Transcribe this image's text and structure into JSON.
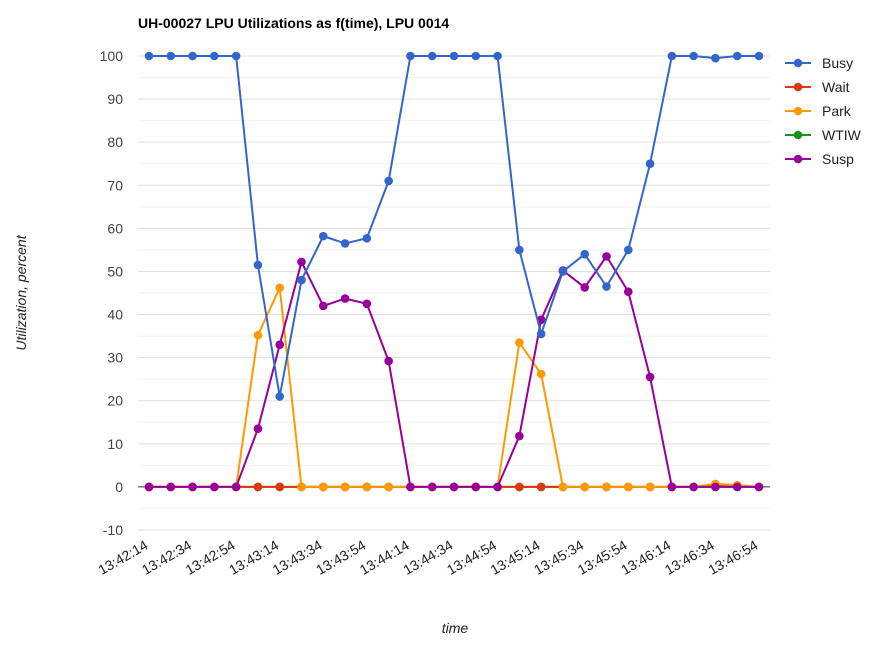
{
  "chart_data": {
    "type": "line",
    "title": "UH-00027 LPU Utilizations as f(time), LPU 0014",
    "xlabel": "time",
    "ylabel": "Utilization, percent",
    "ylim": [
      -10,
      100
    ],
    "yticks": [
      -10,
      0,
      10,
      20,
      30,
      40,
      50,
      60,
      70,
      80,
      90,
      100
    ],
    "x": [
      "13:42:14",
      "13:42:24",
      "13:42:34",
      "13:42:44",
      "13:42:54",
      "13:43:04",
      "13:43:14",
      "13:43:24",
      "13:43:34",
      "13:43:44",
      "13:43:54",
      "13:44:04",
      "13:44:14",
      "13:44:24",
      "13:44:34",
      "13:44:44",
      "13:44:54",
      "13:45:04",
      "13:45:14",
      "13:45:24",
      "13:45:34",
      "13:45:44",
      "13:45:54",
      "13:46:04",
      "13:46:14",
      "13:46:24",
      "13:46:34",
      "13:46:44",
      "13:46:54"
    ],
    "xtick_labels": [
      "13:42:14",
      "13:42:34",
      "13:42:54",
      "13:43:14",
      "13:43:34",
      "13:43:54",
      "13:44:14",
      "13:44:34",
      "13:44:54",
      "13:45:14",
      "13:45:34",
      "13:45:54",
      "13:46:14",
      "13:46:34",
      "13:46:54"
    ],
    "grid": true,
    "legend_position": "right",
    "series": [
      {
        "name": "Busy",
        "color": "#3366cc",
        "values": [
          100,
          100,
          100,
          100,
          100,
          51.5,
          21,
          48,
          58.2,
          56.5,
          57.7,
          71,
          100,
          100,
          100,
          100,
          100,
          55,
          35.5,
          50,
          54,
          46.5,
          55,
          75,
          100,
          100,
          99.5,
          100,
          100
        ]
      },
      {
        "name": "Wait",
        "color": "#dc3912",
        "values": [
          0,
          0,
          0,
          0,
          0,
          0,
          0,
          0,
          0,
          0,
          0,
          0,
          0,
          0,
          0,
          0,
          0,
          0,
          0,
          0,
          0,
          0,
          0,
          0,
          0,
          0,
          0.5,
          0.3,
          0
        ]
      },
      {
        "name": "Park",
        "color": "#ff9900",
        "values": [
          0,
          0,
          0,
          0,
          0,
          35.2,
          46.2,
          0,
          0,
          0,
          0,
          0,
          0,
          0,
          0,
          0,
          0,
          33.5,
          26.2,
          0,
          0,
          0,
          0,
          0,
          0,
          0,
          0.7,
          0.4,
          0
        ]
      },
      {
        "name": "WTIW",
        "color": "#109618",
        "values": [
          0,
          0,
          0,
          0,
          0,
          0,
          0,
          0,
          0,
          0,
          0,
          0,
          0,
          0,
          0,
          0,
          0,
          0,
          0,
          0,
          0,
          0,
          0,
          0,
          0,
          0,
          0,
          0,
          0
        ]
      },
      {
        "name": "Susp",
        "color": "#990099",
        "values": [
          0,
          0,
          0,
          0,
          0,
          13.5,
          33,
          52.2,
          42,
          43.7,
          42.5,
          29.2,
          0,
          0,
          0,
          0,
          0,
          11.8,
          38.8,
          50.2,
          46.3,
          53.5,
          45.3,
          25.5,
          0,
          0,
          0,
          0,
          0
        ]
      }
    ]
  }
}
